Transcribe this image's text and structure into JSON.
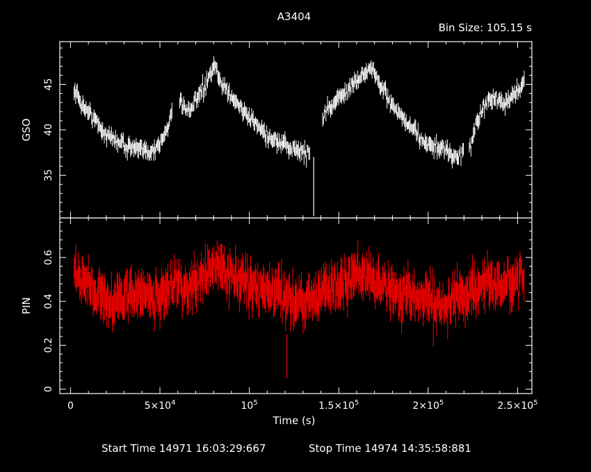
{
  "chart_data": {
    "type": "line",
    "title": "A3404",
    "bin_size_label": "Bin Size:  105.15  s",
    "xlabel": "Time (s)",
    "footer": {
      "start_label": "Start Time 14971  16:03:29:667",
      "stop_label": "Stop Time 14974  14:35:58:881"
    },
    "x_range": [
      -6000,
      258000
    ],
    "x_ticks": [
      {
        "value": 0,
        "mant": "0",
        "exp": ""
      },
      {
        "value": 50000,
        "mant": "5×10",
        "exp": "4"
      },
      {
        "value": 100000,
        "mant": "10",
        "exp": "5"
      },
      {
        "value": 150000,
        "mant": "1.5×10",
        "exp": "5"
      },
      {
        "value": 200000,
        "mant": "2×10",
        "exp": "5"
      },
      {
        "value": 250000,
        "mant": "2.5×10",
        "exp": "5"
      }
    ],
    "panels": [
      {
        "name": "GSO",
        "ylabel": "GSO",
        "color": "#ffffff",
        "ylim": [
          30.3,
          49.7
        ],
        "y_ticks": [
          35,
          40,
          45
        ],
        "series": [
          {
            "segments": [
              [
                2000,
                44.5
              ],
              [
                6000,
                43.0
              ],
              [
                10000,
                42.0
              ],
              [
                14000,
                41.0
              ],
              [
                18000,
                40.0
              ],
              [
                22000,
                39.2
              ],
              [
                26000,
                38.8
              ],
              [
                30000,
                38.4
              ],
              [
                34000,
                38.1
              ],
              [
                38000,
                37.8
              ],
              [
                42000,
                37.7
              ],
              [
                46000,
                37.8
              ],
              [
                50000,
                38.4
              ],
              [
                54000,
                40.0
              ],
              [
                57000,
                42.5
              ]
            ]
          },
          {
            "segments": [
              [
                61000,
                43.5
              ],
              [
                65000,
                42.0
              ],
              [
                69000,
                42.8
              ],
              [
                73000,
                44.0
              ],
              [
                77000,
                45.5
              ],
              [
                81000,
                47.0
              ],
              [
                83000,
                45.5
              ],
              [
                87000,
                44.5
              ],
              [
                91000,
                43.5
              ],
              [
                95000,
                42.5
              ],
              [
                99000,
                41.5
              ],
              [
                103000,
                40.8
              ],
              [
                107000,
                40.0
              ],
              [
                111000,
                39.2
              ],
              [
                115000,
                38.7
              ],
              [
                119000,
                38.3
              ],
              [
                123000,
                38.0
              ],
              [
                127000,
                37.8
              ],
              [
                131000,
                37.6
              ],
              [
                134000,
                37.4
              ]
            ]
          },
          {
            "segments": [
              [
                141000,
                41.5
              ],
              [
                145000,
                42.5
              ],
              [
                149000,
                43.3
              ],
              [
                153000,
                44.0
              ],
              [
                157000,
                44.8
              ],
              [
                161000,
                45.6
              ],
              [
                165000,
                46.3
              ],
              [
                169000,
                46.8
              ],
              [
                173000,
                45.0
              ],
              [
                177000,
                43.6
              ],
              [
                181000,
                42.5
              ],
              [
                185000,
                41.4
              ],
              [
                189000,
                40.4
              ],
              [
                193000,
                39.6
              ],
              [
                197000,
                38.9
              ],
              [
                201000,
                38.4
              ],
              [
                205000,
                38.0
              ],
              [
                209000,
                37.7
              ],
              [
                213000,
                37.3
              ],
              [
                217000,
                37.0
              ],
              [
                220000,
                37.2
              ]
            ]
          },
          {
            "segments": [
              [
                223000,
                38.0
              ],
              [
                227000,
                40.5
              ],
              [
                231000,
                42.5
              ],
              [
                235000,
                43.5
              ],
              [
                239000,
                43.2
              ],
              [
                243000,
                42.8
              ],
              [
                247000,
                43.5
              ],
              [
                251000,
                44.5
              ],
              [
                254000,
                45.2
              ]
            ]
          }
        ],
        "outliers": [
          [
            136000,
            30.5
          ]
        ]
      },
      {
        "name": "PIN",
        "ylabel": "PIN",
        "color": "#ff0000",
        "ylim": [
          -0.02,
          0.78
        ],
        "y_ticks": [
          0,
          0.2,
          0.4,
          0.6
        ],
        "series": [
          {
            "segments": [
              [
                2000,
                0.53
              ],
              [
                6000,
                0.52
              ],
              [
                10000,
                0.48
              ],
              [
                14000,
                0.45
              ],
              [
                18000,
                0.42
              ],
              [
                22000,
                0.4
              ],
              [
                26000,
                0.41
              ],
              [
                30000,
                0.42
              ],
              [
                34000,
                0.43
              ],
              [
                38000,
                0.44
              ],
              [
                42000,
                0.43
              ],
              [
                46000,
                0.42
              ],
              [
                50000,
                0.43
              ],
              [
                54000,
                0.46
              ],
              [
                58000,
                0.48
              ],
              [
                62000,
                0.47
              ],
              [
                66000,
                0.46
              ],
              [
                70000,
                0.48
              ],
              [
                74000,
                0.5
              ],
              [
                78000,
                0.55
              ],
              [
                82000,
                0.57
              ],
              [
                86000,
                0.54
              ],
              [
                90000,
                0.52
              ],
              [
                94000,
                0.5
              ],
              [
                98000,
                0.48
              ],
              [
                102000,
                0.47
              ],
              [
                106000,
                0.46
              ],
              [
                110000,
                0.45
              ],
              [
                114000,
                0.44
              ],
              [
                118000,
                0.43
              ],
              [
                122000,
                0.42
              ],
              [
                126000,
                0.41
              ],
              [
                130000,
                0.4
              ],
              [
                134000,
                0.41
              ],
              [
                138000,
                0.43
              ],
              [
                142000,
                0.45
              ],
              [
                146000,
                0.47
              ],
              [
                150000,
                0.49
              ],
              [
                154000,
                0.5
              ],
              [
                158000,
                0.51
              ],
              [
                162000,
                0.52
              ],
              [
                166000,
                0.53
              ],
              [
                170000,
                0.5
              ],
              [
                174000,
                0.47
              ],
              [
                178000,
                0.45
              ],
              [
                182000,
                0.44
              ],
              [
                186000,
                0.43
              ],
              [
                190000,
                0.43
              ],
              [
                194000,
                0.42
              ],
              [
                198000,
                0.41
              ],
              [
                202000,
                0.4
              ],
              [
                206000,
                0.39
              ],
              [
                210000,
                0.4
              ],
              [
                214000,
                0.41
              ],
              [
                218000,
                0.42
              ],
              [
                222000,
                0.44
              ],
              [
                226000,
                0.46
              ],
              [
                230000,
                0.48
              ],
              [
                234000,
                0.48
              ],
              [
                238000,
                0.47
              ],
              [
                242000,
                0.46
              ],
              [
                246000,
                0.47
              ],
              [
                250000,
                0.49
              ],
              [
                254000,
                0.51
              ]
            ]
          }
        ],
        "outliers": [
          [
            121000,
            0.05
          ]
        ]
      }
    ]
  }
}
